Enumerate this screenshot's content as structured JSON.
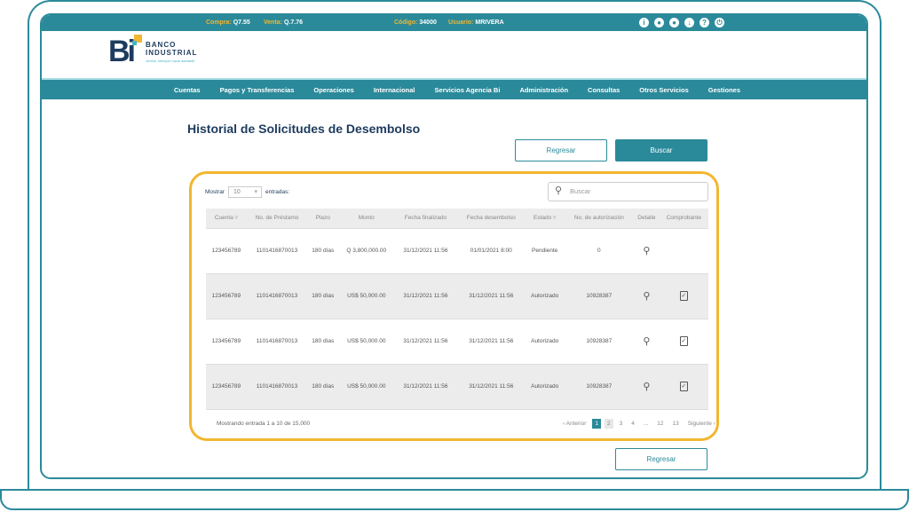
{
  "topbar": {
    "compra_label": "Compra:",
    "compra": "Q7.55",
    "venta_label": "Venta:",
    "venta": "Q.7.76",
    "codigo_label": "Código:",
    "codigo": "34000",
    "usuario_label": "Usuario:",
    "usuario": "MRIVERA",
    "icons": [
      "info-icon",
      "user-icon",
      "location-icon",
      "download-icon",
      "help-icon",
      "power-icon"
    ]
  },
  "logo": {
    "mark": "Bi",
    "name1": "BANCO",
    "name2": "INDUSTRIAL",
    "tagline": "Juntos, siempre hacia adelante"
  },
  "nav": [
    "Cuentas",
    "Pagos y Transferencias",
    "Operaciones",
    "Internacional",
    "Servicios Agencia Bi",
    "Administración",
    "Consultas",
    "Otros Servicios",
    "Gestiones"
  ],
  "page": {
    "title": "Historial de Solicitudes de Desembolso",
    "regresar": "Regresar",
    "buscar": "Buscar"
  },
  "table_controls": {
    "mostrar": "Mostrar",
    "page_size": "10",
    "entradas": "entradas:",
    "search_placeholder": "Buscar"
  },
  "columns": [
    "Cuenta ▿",
    "No. de Préstamo",
    "Plazo",
    "Monto",
    "Fecha finalizado",
    "Fecha desembolso",
    "Estado ▿",
    "No. de autorización",
    "Detalle",
    "Comprobante"
  ],
  "rows": [
    [
      "123456789",
      "1101416870013",
      "180 días",
      "Q  3,800,000.00",
      "31/12/2021 11:56",
      "01/01/2021 8:00",
      "Pendiente",
      "0"
    ],
    [
      "123456789",
      "1101416870013",
      "180 días",
      "US$  50,000.00",
      "31/12/2021 11:56",
      "31/12/2021 11:56",
      "Autorizado",
      "10928387"
    ],
    [
      "123456789",
      "1101416870013",
      "180 días",
      "US$  50,000.00",
      "31/12/2021 11:56",
      "31/12/2021 11:56",
      "Autorizado",
      "10928387"
    ],
    [
      "123456789",
      "1101416870013",
      "180 días",
      "US$  50,000.00",
      "31/12/2021 11:56",
      "31/12/2021 11:56",
      "Autorizado",
      "10928387"
    ]
  ],
  "footer": {
    "info": "Mostrando entrada 1 a 10 de 15,000",
    "prev": "‹  Anterior",
    "next": "Siguiente  ›",
    "pages": [
      "1",
      "2",
      "3",
      "4",
      "...",
      "12",
      "13"
    ]
  },
  "colors": {
    "primary": "#2b8a9a",
    "accent": "#f2b630",
    "navy": "#1d3b5e"
  }
}
